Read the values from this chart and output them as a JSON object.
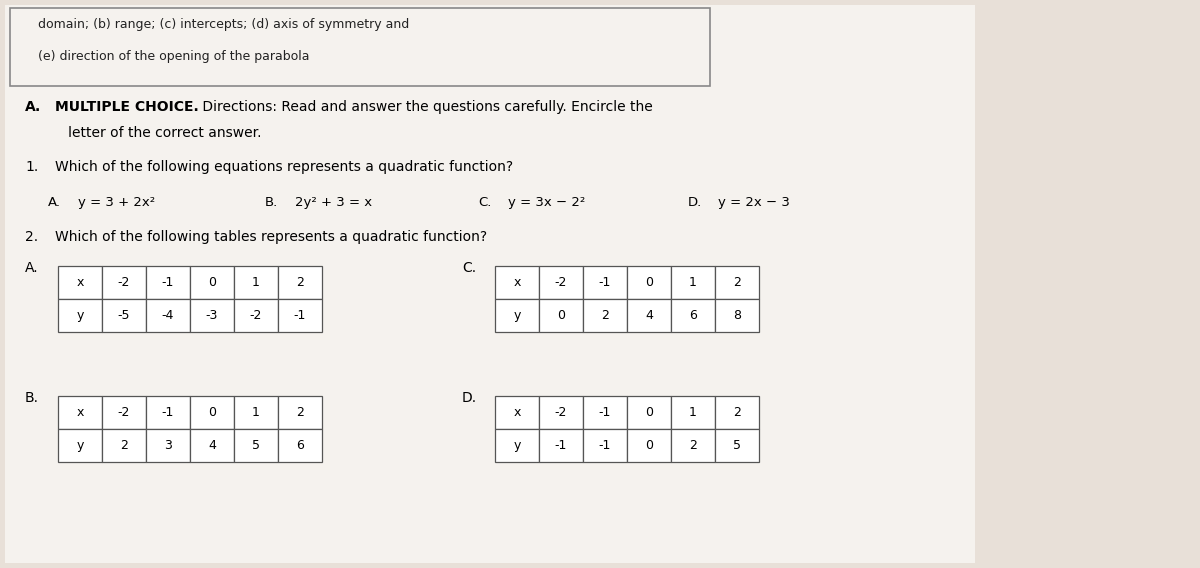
{
  "bg_color": "#e8e0d8",
  "paper_color": "#f5f2ee",
  "header_text_line1": "domain; (b) range; (c) intercepts; (d) axis of symmetry and",
  "header_text_line2": "(e) direction of the opening of the parabola",
  "section_label": "A.",
  "section_title": "MULTIPLE CHOICE.",
  "section_desc": " Directions: Read and answer the questions carefully. Encircle the",
  "section_desc2": "   letter of the correct answer.",
  "q1_num": "1.",
  "q1_text": "Which of the following equations represents a quadratic function?",
  "q1_choices": [
    {
      "letter": "A.",
      "eq": "y = 3 + 2x²"
    },
    {
      "letter": "B.",
      "eq": "2y² + 3 = x"
    },
    {
      "letter": "C.",
      "eq": "y = 3x − 2²"
    },
    {
      "letter": "D.",
      "eq": "y = 2x − 3"
    }
  ],
  "q2_num": "2.",
  "q2_text": "Which of the following tables represents a quadratic function?",
  "tableA_x": [
    "x",
    "-2",
    "-1",
    "0",
    "1",
    "2"
  ],
  "tableA_y": [
    "y",
    "-5",
    "-4",
    "-3",
    "-2",
    "-1"
  ],
  "tableB_x": [
    "x",
    "-2",
    "-1",
    "0",
    "1",
    "2"
  ],
  "tableB_y": [
    "y",
    "2",
    "3",
    "4",
    "5",
    "6"
  ],
  "tableC_x": [
    "x",
    "-2",
    "-1",
    "0",
    "1",
    "2"
  ],
  "tableC_y": [
    "y",
    "0",
    "2",
    "4",
    "6",
    "8"
  ],
  "tableD_x": [
    "x",
    "-2",
    "-1",
    "0",
    "1",
    "2"
  ],
  "tableD_y": [
    "y",
    "-1",
    "-1",
    "0",
    "2",
    "5"
  ]
}
